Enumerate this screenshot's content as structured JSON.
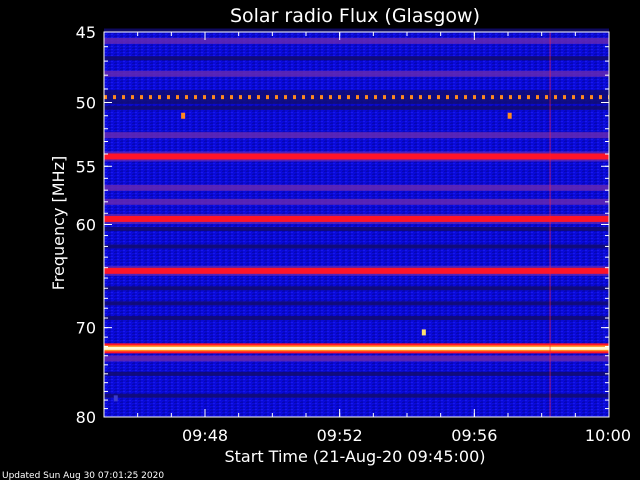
{
  "chart_data": {
    "type": "heatmap",
    "title": "Solar radio Flux (Glasgow)",
    "xlabel": "Start Time (21-Aug-20 09:45:00)",
    "ylabel": "Frequency [MHz]",
    "footer": "Updated Sun Aug 30 07:01:25 2020",
    "x_unit": "minutes after 09:45:00",
    "xlim": [
      0,
      15
    ],
    "ylim": [
      45,
      80
    ],
    "y_scale": "log",
    "y_inverted": true,
    "x_ticks": [
      {
        "value": 3,
        "label": "09:48"
      },
      {
        "value": 7,
        "label": "09:52"
      },
      {
        "value": 11,
        "label": "09:56"
      },
      {
        "value": 15,
        "label": "10:00"
      }
    ],
    "y_ticks": [
      {
        "value": 45,
        "label": "45"
      },
      {
        "value": 50,
        "label": "50"
      },
      {
        "value": 55,
        "label": "55"
      },
      {
        "value": 60,
        "label": "60"
      },
      {
        "value": 70,
        "label": "70"
      },
      {
        "value": 80,
        "label": "80"
      }
    ],
    "colors": {
      "background": "#0a0ad8",
      "dark_band": "#120c6e",
      "red_band": "#ff1428",
      "purple_band": "#6a2bb0",
      "orange": "#ff8a1e",
      "hot_band": "#fffbd0",
      "axis": "#ffffff"
    },
    "bands": [
      {
        "mhz": 44.9,
        "kind": "dark"
      },
      {
        "mhz": 45.6,
        "kind": "purple"
      },
      {
        "mhz": 46.8,
        "kind": "dark"
      },
      {
        "mhz": 47.9,
        "kind": "purple"
      },
      {
        "mhz": 49.6,
        "kind": "dashed_orange"
      },
      {
        "mhz": 50.4,
        "kind": "dark"
      },
      {
        "mhz": 52.5,
        "kind": "purple"
      },
      {
        "mhz": 54.2,
        "kind": "red"
      },
      {
        "mhz": 56.8,
        "kind": "purple"
      },
      {
        "mhz": 58.0,
        "kind": "purple"
      },
      {
        "mhz": 59.5,
        "kind": "red"
      },
      {
        "mhz": 60.4,
        "kind": "dark"
      },
      {
        "mhz": 62.0,
        "kind": "dark"
      },
      {
        "mhz": 64.3,
        "kind": "red"
      },
      {
        "mhz": 66.0,
        "kind": "dark"
      },
      {
        "mhz": 67.5,
        "kind": "dark"
      },
      {
        "mhz": 69.0,
        "kind": "dark"
      },
      {
        "mhz": 72.2,
        "kind": "hot"
      },
      {
        "mhz": 73.3,
        "kind": "purple"
      },
      {
        "mhz": 75.0,
        "kind": "dark"
      },
      {
        "mhz": 77.5,
        "kind": "dark"
      }
    ],
    "spots": [
      {
        "x": 2.35,
        "mhz": 51.0,
        "color": "#ff8a1e"
      },
      {
        "x": 12.05,
        "mhz": 51.0,
        "color": "#ff8a1e"
      },
      {
        "x": 9.5,
        "mhz": 70.5,
        "color": "#ffe070"
      },
      {
        "x": 0.35,
        "mhz": 77.8,
        "color": "#3a3ad0"
      }
    ],
    "vertical_streaks": [
      {
        "x": 13.25,
        "color": "#ff2030"
      }
    ]
  }
}
